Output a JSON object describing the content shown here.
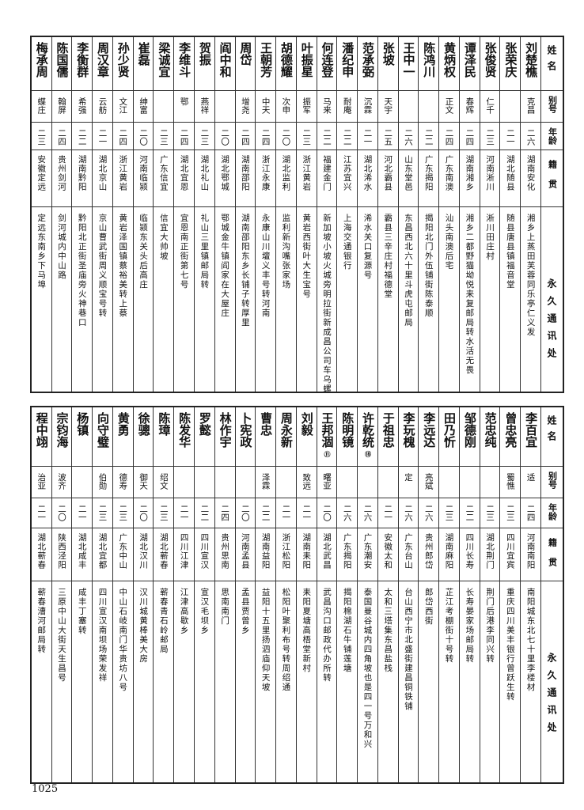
{
  "header": {
    "name": "姓名",
    "alias": "别号",
    "age": "年龄",
    "origin": "籍贯",
    "address": "永久通讯处"
  },
  "tables": [
    {
      "rows": [
        {
          "name": "刘楚樵",
          "alias": "克昌",
          "age": "二六",
          "origin": "湖南安化",
          "address": "湘乡上蒸田芙蓉同乐亭仁义发"
        },
        {
          "name": "张荣庆",
          "alias": "",
          "age": "二一",
          "origin": "湖北随县",
          "address": "随县唐县镇福音堂"
        },
        {
          "name": "张俊贤",
          "alias": "仁千",
          "age": "二三",
          "origin": "河南淅川",
          "address": "淅川田庄村"
        },
        {
          "name": "谭泽民",
          "alias": "春辉",
          "age": "二四",
          "origin": "湖南湘乡",
          "address": "湘乡二都野猫坳悦来复邮局转水活无畏"
        },
        {
          "name": "黄炳权",
          "alias": "正文",
          "age": "二四",
          "origin": "广东南澳",
          "address": "汕头南澳后宅"
        },
        {
          "name": "陈鸿川",
          "alias": "",
          "age": "二二",
          "origin": "广东揭阳",
          "address": "揭阳北门外伍铺街陈泰顺"
        },
        {
          "name": "王中一",
          "alias": "",
          "age": "二六",
          "origin": "山东堂邑",
          "address": "东昌西北六十里斗虎屯邮局"
        },
        {
          "name": "张坡",
          "alias": "天宇",
          "age": "二五",
          "origin": "河北霸县",
          "address": "霸县三辛庄村福德堂"
        },
        {
          "name": "范承弼",
          "alias": "沉霖",
          "age": "二一",
          "origin": "湖北浠水",
          "address": "浠水关口复源号"
        },
        {
          "name": "潘纪申",
          "alias": "耐庵",
          "age": "二二",
          "origin": "江苏宜兴",
          "address": "上海交通银行"
        },
        {
          "name": "何连登",
          "alias": "马来",
          "age": "二二",
          "origin": "福建金门",
          "address": "新加坡小坡火城旁明拉街新成昌公司车乌螺转"
        },
        {
          "name": "叶振星",
          "alias": "振军",
          "age": "二三",
          "origin": "浙江黄岩",
          "address": "黄岩西街叶大生宝号"
        },
        {
          "name": "胡德耀",
          "alias": "次申",
          "age": "二〇",
          "origin": "湖北监利",
          "address": "监利新沟嘴张家场"
        },
        {
          "name": "王朝芳",
          "alias": "中天",
          "age": "二四",
          "origin": "浙江永康",
          "address": "永康山川壇义丰号转河南"
        },
        {
          "name": "周岱",
          "alias": "增尧",
          "age": "二四",
          "origin": "湖南邵阳",
          "address": "湖南邵阳东乡长铺子转厚里"
        },
        {
          "name": "阎中和",
          "alias": "",
          "age": "二〇",
          "origin": "湖北鄂城",
          "address": "鄂城金牛镇阎家在大屋庄"
        },
        {
          "name": "贺振",
          "alias": "燕祥",
          "age": "二三",
          "origin": "湖北礼山",
          "address": "礼山三里镇邮局转"
        },
        {
          "name": "李维斗",
          "alias": "鄂",
          "age": "二四",
          "origin": "湖北宜恩",
          "address": "宜恩南正街第七号"
        },
        {
          "name": "梁诚宜",
          "alias": "",
          "age": "二三",
          "origin": "广东信宜",
          "address": "信宜大帅坡"
        },
        {
          "name": "崔磊",
          "alias": "绅富",
          "age": "二〇",
          "origin": "河南临颍",
          "address": "临颍东关头后高庄"
        },
        {
          "name": "孙少贤",
          "alias": "文江",
          "age": "二四",
          "origin": "浙江黄岩",
          "address": "黄岩泽国镇蔡裕美转上蔡"
        },
        {
          "name": "周汉章",
          "alias": "云舫",
          "age": "二一",
          "origin": "湖北京山",
          "address": "京山曹武街周义顺宝号转"
        },
        {
          "name": "李衡群",
          "alias": "希强",
          "age": "二二",
          "origin": "湖南黔阳",
          "address": "黔阳北正街圣庙旁火神巷口"
        },
        {
          "name": "陈国儒",
          "alias": "翰屏",
          "age": "二四",
          "origin": "贵州剑河",
          "address": "剑河城内中山路"
        },
        {
          "name": "梅承周",
          "alias": "蝶庄",
          "age": "二三",
          "origin": "安徽定远",
          "address": "定远东南乡下马埠"
        }
      ]
    },
    {
      "rows": [
        {
          "name": "李百宜",
          "alias": "适",
          "age": "二四",
          "origin": "河南南阳",
          "address": "南阳城东北七十里李楼材"
        },
        {
          "name": "曾忠亮",
          "alias": "蜀憔",
          "age": "二三",
          "origin": "四川宜宾",
          "address": "重庆四川美丰银行曾跃生转"
        },
        {
          "name": "范忠纯",
          "alias": "",
          "age": "二三",
          "origin": "湖北荆门",
          "address": "荆门后港李同兴转"
        },
        {
          "name": "邹德刚",
          "alias": "",
          "age": "二二",
          "origin": "四川长寿",
          "address": "长寿晏家场邮局转"
        },
        {
          "name": "田乃忻",
          "alias": "",
          "age": "二三",
          "origin": "湖南麻阳",
          "address": "芷江考棚街十号转"
        },
        {
          "name": "李远达",
          "alias": "亮斌",
          "age": "二六",
          "origin": "贵州郎岱",
          "address": "郎岱西街"
        },
        {
          "name": "李玩槐",
          "alias": "定",
          "age": "二六",
          "origin": "广东台山",
          "address": "台山西宁市北盛街建昌铜铁铺"
        },
        {
          "name": "于祖忠",
          "alias": "",
          "age": "二一",
          "origin": "安徽太和",
          "address": "太和三塔集东昌盐栈"
        },
        {
          "name": "许乾统",
          "mark": "⑱",
          "alias": "",
          "age": "二六",
          "origin": "广东潮安",
          "address": "泰国曼谷城内四角坡也是四一号万和兴"
        },
        {
          "name": "陈明镜",
          "alias": "",
          "age": "二六",
          "origin": "广东揭阳",
          "address": "揭阳棉湖石牛铺莲塘"
        },
        {
          "name": "王邦涸",
          "mark": "⑪",
          "alias": "曙亚",
          "age": "二〇",
          "origin": "湖北武昌",
          "address": "武昌沟口邮政代办所转"
        },
        {
          "name": "刘毅",
          "alias": "致远",
          "age": "二一",
          "origin": "湖南耒阳",
          "address": "耒阳夏塘高梧堂新村"
        },
        {
          "name": "周永新",
          "alias": "",
          "age": "二一",
          "origin": "浙江松阳",
          "address": "松阳叶聚利布号转周绍通"
        },
        {
          "name": "曹忠",
          "alias": "泽霖",
          "age": "二二",
          "origin": "湖南益阳",
          "address": "益阳十五里扬泗庙仰天坡"
        },
        {
          "name": "卜宪政",
          "alias": "",
          "age": "二〇",
          "origin": "河南孟县",
          "address": "孟县贾曾乡"
        },
        {
          "name": "林作宇",
          "alias": "",
          "age": "二四",
          "origin": "贵州思南",
          "address": "思南南门"
        },
        {
          "name": "罗懿",
          "alias": "",
          "age": "二二",
          "origin": "四川宣汉",
          "address": "宣汉毛坝乡"
        },
        {
          "name": "陈发华",
          "alias": "",
          "age": "二一",
          "origin": "四川江津",
          "address": "江津高歇乡"
        },
        {
          "name": "陈璋",
          "alias": "绍文",
          "age": "二三",
          "origin": "湖北蕲春",
          "address": "蕲春青石岭邮局"
        },
        {
          "name": "徐骢",
          "alias": "御天",
          "age": "二〇",
          "origin": "湖北汉川",
          "address": "汉川城黄棒美大房"
        },
        {
          "name": "黄勇",
          "alias": "德寿",
          "age": "二三",
          "origin": "广东中山",
          "address": "中山石岐南门华贵坊八号"
        },
        {
          "name": "向守璧",
          "alias": "伯勋",
          "age": "二三",
          "origin": "湖北宜都",
          "address": "四川宣汉南坝场荣发祥"
        },
        {
          "name": "杨镇",
          "alias": "",
          "age": "二一",
          "origin": "湖北咸丰",
          "address": "咸丰丁塞转"
        },
        {
          "name": "宗钧海",
          "alias": "波齐",
          "age": "二〇",
          "origin": "陕西泾阳",
          "address": "三原中山大街天生昌号"
        },
        {
          "name": "程中翊",
          "alias": "治亚",
          "age": "二一",
          "origin": "湖北蕲春",
          "address": "蕲春漕河邮局转"
        }
      ]
    }
  ],
  "page_number": "1025"
}
